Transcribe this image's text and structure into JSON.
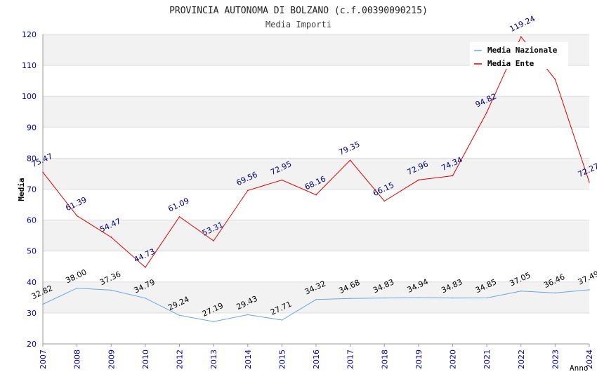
{
  "chart_data": {
    "type": "line",
    "title": "PROVINCIA AUTONOMA DI BOLZANO (c.f.00390090215)",
    "subtitle": "Media Importi",
    "xlabel": "Anno",
    "ylabel": "Media",
    "ylim": [
      20,
      120
    ],
    "yticks": [
      20,
      30,
      40,
      50,
      60,
      70,
      80,
      90,
      100,
      110,
      120
    ],
    "categories": [
      "2007",
      "2008",
      "2009",
      "2010",
      "2012",
      "2013",
      "2014",
      "2015",
      "2016",
      "2017",
      "2018",
      "2019",
      "2020",
      "2021",
      "2022",
      "2023",
      "2024"
    ],
    "legend_position": "top-right",
    "series": [
      {
        "name": "Media Nazionale",
        "color": "#6aa6e6",
        "label_color": "#000000",
        "values": [
          32.82,
          38.0,
          37.36,
          34.79,
          29.24,
          27.19,
          29.43,
          27.71,
          34.32,
          34.68,
          34.83,
          34.94,
          34.83,
          34.85,
          37.05,
          36.46,
          37.49
        ],
        "labels": [
          "32.82",
          "38.00",
          "37.36",
          "34.79",
          "29.24",
          "27.19",
          "29.43",
          "27.71",
          "34.32",
          "34.68",
          "34.83",
          "34.94",
          "34.83",
          "34.85",
          "37.05",
          "36.46",
          "37.49"
        ]
      },
      {
        "name": "Media Ente",
        "color": "#e00000",
        "label_color": "#00007f",
        "values": [
          75.47,
          61.39,
          54.47,
          44.73,
          61.09,
          53.31,
          69.56,
          72.95,
          68.16,
          79.35,
          66.15,
          72.96,
          74.34,
          94.82,
          119.24,
          105.5,
          72.27
        ],
        "labels": [
          "75.47",
          "61.39",
          "54.47",
          "44.73",
          "61.09",
          "53.31",
          "69.56",
          "72.95",
          "68.16",
          "79.35",
          "66.15",
          "72.96",
          "74.34",
          "94.82",
          "119.24",
          "",
          "72.27"
        ]
      }
    ],
    "colors": {
      "band": "#f2f2f2",
      "grid": "#dddddd",
      "axis_text": "#0000aa",
      "title_text": "#222222"
    }
  }
}
